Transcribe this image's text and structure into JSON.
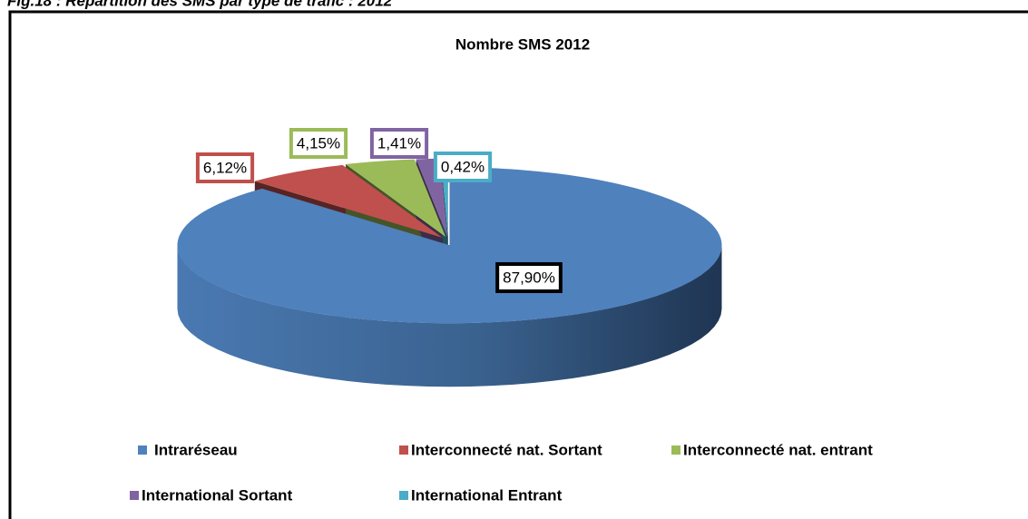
{
  "caption": "Fig.18 : Répartition des SMS par type de trafic : 2012",
  "chart_data": {
    "type": "pie3d",
    "title": "Nombre SMS 2012",
    "categories": [
      "Intraréseau",
      "Interconnecté nat. Sortant",
      "Interconnecté nat. entrant",
      "International Sortant",
      "International Entrant"
    ],
    "values": [
      87.9,
      6.12,
      4.15,
      1.41,
      0.42
    ],
    "value_labels": [
      "87,90%",
      "6,12%",
      "4,15%",
      "1,41%",
      "0,42%"
    ],
    "colors": [
      "#4f81bd",
      "#c0504d",
      "#9bbb59",
      "#8064a2",
      "#4bacc6"
    ],
    "label_border_colors": [
      "#000000",
      "#c0504d",
      "#9bbb59",
      "#8064a2",
      "#4bacc6"
    ],
    "legend": "bottom"
  }
}
